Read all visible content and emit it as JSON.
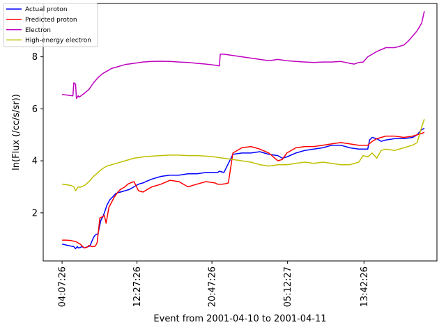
{
  "chart_data": {
    "type": "line",
    "title": "",
    "xlabel": "Event from 2001-04-10 to 2001-04-11",
    "ylabel": "ln(Flux (/cc/s/sr))",
    "x_ticks": [
      "04:07:26",
      "12:27:26",
      "20:47:26",
      "05:12:27",
      "13:42:26"
    ],
    "x_tick_hours": [
      0,
      8.333,
      16.667,
      25.083,
      33.583
    ],
    "xlim_hours": [
      -2.1,
      41.7
    ],
    "ylim": [
      0.15,
      10.05
    ],
    "y_ticks": [
      2,
      4,
      6,
      8
    ],
    "legend_position": "top-left",
    "grid": false,
    "series": [
      {
        "name": "Actual proton",
        "color": "#0000ff",
        "x": [
          0,
          0.6,
          1,
          1.3,
          1.5,
          1.7,
          1.8,
          2.0,
          2.2,
          2.5,
          2.7,
          2.9,
          3.1,
          3.3,
          3.5,
          3.7,
          4.0,
          4.3,
          4.6,
          4.8,
          5.0,
          5.3,
          5.6,
          6.0,
          6.5,
          7.0,
          7.5,
          8.0,
          8.5,
          9.0,
          9.3,
          10.0,
          11.0,
          12.0,
          13.0,
          14.0,
          15.0,
          16.0,
          17.0,
          17.3,
          17.5,
          18.0,
          19.0,
          20.0,
          21.0,
          22.0,
          23.0,
          24.0,
          24.5,
          25.0,
          26.0,
          27.0,
          28.0,
          29.0,
          30.0,
          31.0,
          32.0,
          33.0,
          34.0,
          34.2,
          34.5,
          35.0,
          35.5,
          36.0,
          37.0,
          38.0,
          39.0,
          39.5,
          40.0,
          40.3
        ],
        "values": [
          0.8,
          0.75,
          0.72,
          0.7,
          0.62,
          0.7,
          0.65,
          0.66,
          0.7,
          0.65,
          0.68,
          0.7,
          0.72,
          0.9,
          1.05,
          1.15,
          1.2,
          1.7,
          1.9,
          2.1,
          2.3,
          2.5,
          2.6,
          2.75,
          2.8,
          2.85,
          2.9,
          3.0,
          3.1,
          3.15,
          3.2,
          3.3,
          3.4,
          3.45,
          3.45,
          3.5,
          3.5,
          3.55,
          3.55,
          3.55,
          3.6,
          3.55,
          4.25,
          4.3,
          4.3,
          4.35,
          4.25,
          4.2,
          4.1,
          4.15,
          4.3,
          4.4,
          4.45,
          4.5,
          4.6,
          4.6,
          4.5,
          4.45,
          4.45,
          4.8,
          4.9,
          4.85,
          4.75,
          4.8,
          4.85,
          4.85,
          4.9,
          5.0,
          5.2,
          5.25
        ]
      },
      {
        "name": "Predicted proton",
        "color": "#ff0000",
        "x": [
          0,
          0.5,
          1,
          1.5,
          2.0,
          2.3,
          2.5,
          2.8,
          3.0,
          3.3,
          3.5,
          3.7,
          3.9,
          4.2,
          4.5,
          4.7,
          4.9,
          5.2,
          5.5,
          5.8,
          6.2,
          6.5,
          7.0,
          7.3,
          7.6,
          8.0,
          8.5,
          9.0,
          9.5,
          10.0,
          11.0,
          12.0,
          13.0,
          14.0,
          15.0,
          16.0,
          17.0,
          17.3,
          17.8,
          18.2,
          18.5,
          19.0,
          20.0,
          21.0,
          21.5,
          22.0,
          23.0,
          24.0,
          24.5,
          25.0,
          26.0,
          27.0,
          28.0,
          29.0,
          30.0,
          31.0,
          32.0,
          33.0,
          34.0,
          34.5,
          35.0,
          35.5,
          36.0,
          37.0,
          38.0,
          39.0,
          39.5,
          40.0,
          40.3
        ],
        "values": [
          0.95,
          0.95,
          0.93,
          0.9,
          0.8,
          0.7,
          0.65,
          0.68,
          0.75,
          0.7,
          0.7,
          0.72,
          0.85,
          1.8,
          1.85,
          1.9,
          1.6,
          2.2,
          2.4,
          2.6,
          2.8,
          2.9,
          3.0,
          3.1,
          3.15,
          3.2,
          2.85,
          2.8,
          2.9,
          3.0,
          3.1,
          3.25,
          3.2,
          3.0,
          3.1,
          3.2,
          3.15,
          3.1,
          3.1,
          3.12,
          3.15,
          4.3,
          4.5,
          4.55,
          4.5,
          4.45,
          4.3,
          4.0,
          4.05,
          4.3,
          4.5,
          4.55,
          4.55,
          4.6,
          4.65,
          4.7,
          4.65,
          4.6,
          4.6,
          4.75,
          4.85,
          4.9,
          4.95,
          4.95,
          4.9,
          4.95,
          5.0,
          5.05,
          5.1
        ]
      },
      {
        "name": "Electron",
        "color": "#bf00bf",
        "x": [
          0,
          0.7,
          1.2,
          1.3,
          1.5,
          1.6,
          1.8,
          1.9,
          2.1,
          2.5,
          3.0,
          3.5,
          4.0,
          4.5,
          5.0,
          5.5,
          6.0,
          7.0,
          8.0,
          9.0,
          10.0,
          11.0,
          12.0,
          13.0,
          14.0,
          15.0,
          16.0,
          17.0,
          17.5,
          17.6,
          18.0,
          19.0,
          20.0,
          21.0,
          22.0,
          23.0,
          24.0,
          25.0,
          26.0,
          27.0,
          28.0,
          29.0,
          30.0,
          31.0,
          32.0,
          32.5,
          33.0,
          33.5,
          34.0,
          35.0,
          36.0,
          37.0,
          38.0,
          38.5,
          39.0,
          39.5,
          40.0,
          40.3
        ],
        "values": [
          6.55,
          6.52,
          6.5,
          7.0,
          6.95,
          6.4,
          6.5,
          6.45,
          6.5,
          6.6,
          6.75,
          7.0,
          7.2,
          7.35,
          7.45,
          7.55,
          7.6,
          7.7,
          7.75,
          7.8,
          7.82,
          7.83,
          7.82,
          7.8,
          7.78,
          7.75,
          7.72,
          7.68,
          7.65,
          8.1,
          8.1,
          8.05,
          8.0,
          7.95,
          7.9,
          7.85,
          7.9,
          7.85,
          7.82,
          7.8,
          7.78,
          7.8,
          7.8,
          7.82,
          7.75,
          7.72,
          7.78,
          7.8,
          8.0,
          8.2,
          8.35,
          8.35,
          8.45,
          8.6,
          8.8,
          9.0,
          9.3,
          9.75
        ]
      },
      {
        "name": "High-energy electron",
        "color": "#bfbf00",
        "x": [
          0,
          0.5,
          1.0,
          1.3,
          1.5,
          1.7,
          1.8,
          2.0,
          2.5,
          3.0,
          3.5,
          4.0,
          4.5,
          5.0,
          6.0,
          7.0,
          8.0,
          9.0,
          10.0,
          11.0,
          12.0,
          13.0,
          14.0,
          15.0,
          16.0,
          17.0,
          17.5,
          18.0,
          19.0,
          20.0,
          21.0,
          22.0,
          23.0,
          24.0,
          25.0,
          26.0,
          27.0,
          28.0,
          29.0,
          30.0,
          31.0,
          32.0,
          33.0,
          33.5,
          34.0,
          34.5,
          35.0,
          35.5,
          36.0,
          37.0,
          38.0,
          39.0,
          39.5,
          40.0,
          40.3
        ],
        "values": [
          3.1,
          3.08,
          3.05,
          3.0,
          2.85,
          2.95,
          3.0,
          2.98,
          3.05,
          3.2,
          3.4,
          3.55,
          3.7,
          3.8,
          3.9,
          4.0,
          4.1,
          4.15,
          4.18,
          4.2,
          4.22,
          4.22,
          4.2,
          4.2,
          4.18,
          4.15,
          4.12,
          4.1,
          4.05,
          4.0,
          3.95,
          3.85,
          3.8,
          3.85,
          3.85,
          3.9,
          3.95,
          3.9,
          3.95,
          3.9,
          3.85,
          3.85,
          3.95,
          4.2,
          4.15,
          4.3,
          4.1,
          4.4,
          4.45,
          4.4,
          4.5,
          4.6,
          4.7,
          5.3,
          5.6
        ]
      }
    ]
  }
}
